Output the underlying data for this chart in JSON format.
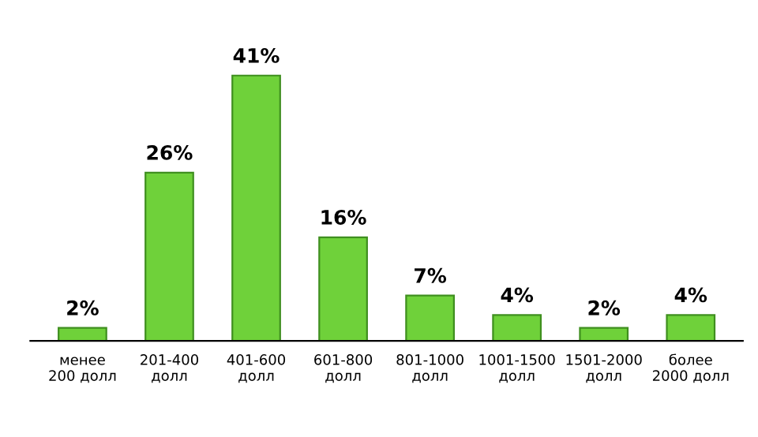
{
  "chart_data": {
    "type": "bar",
    "categories": [
      "менее\n200 долл",
      "201-400\nдолл",
      "401-600\nдолл",
      "601-800\nдолл",
      "801-1000\nдолл",
      "1001-1500\nдолл",
      "1501-2000\nдолл",
      "более\n2000 долл"
    ],
    "values": [
      2,
      26,
      41,
      16,
      7,
      4,
      2,
      4
    ],
    "value_labels": [
      "2%",
      "26%",
      "41%",
      "16%",
      "7%",
      "4%",
      "2%",
      "4%"
    ],
    "color": "#6fd13a",
    "grid": false,
    "legend": false
  }
}
